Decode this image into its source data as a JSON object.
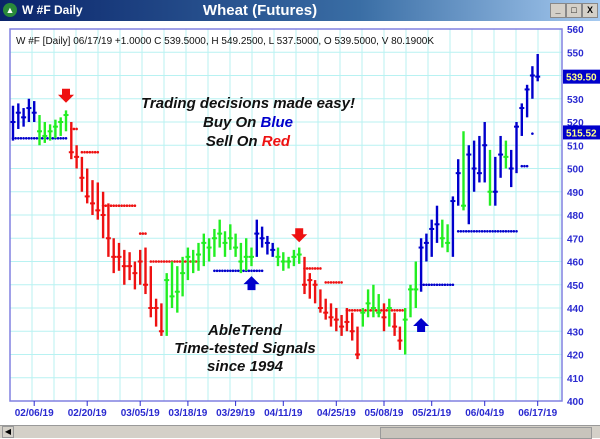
{
  "window": {
    "title": "W #F Daily",
    "chart_title": "Wheat (Futures)",
    "minimize": "_",
    "maximize": "□",
    "close": "X"
  },
  "info_line": "W #F [Daily] 06/17/19  +1.0000 C 539.5000, H 549.2500, L 537.5000, O 539.5000, V 80.1900K",
  "annotations": {
    "line1": "Trading decisions made easy!",
    "buy_prefix": "Buy On ",
    "buy_word": "Blue",
    "sell_prefix": "Sell On ",
    "sell_word": "Red",
    "brand": "AbleTrend",
    "tagline": "Time-tested Signals",
    "since": "since 1994"
  },
  "colors": {
    "blue": "#0000cc",
    "green": "#22ee22",
    "red": "#ee1111",
    "grid": "#b8f2f2",
    "axis_text": "#2a2ad0"
  },
  "chart_data": {
    "type": "ohlc",
    "title": "Wheat (Futures)",
    "ylim": [
      400,
      560
    ],
    "yticks": [
      400,
      410,
      420,
      430,
      440,
      450,
      460,
      470,
      480,
      490,
      500,
      510,
      520,
      530,
      540,
      550,
      560
    ],
    "xtick_labels": [
      "02/06/19",
      "02/20/19",
      "03/05/19",
      "03/18/19",
      "03/29/19",
      "04/11/19",
      "04/25/19",
      "05/08/19",
      "05/21/19",
      "06/04/19",
      "06/17/19"
    ],
    "xtick_bar_index": [
      4,
      14,
      24,
      33,
      42,
      51,
      61,
      70,
      79,
      89,
      99
    ],
    "price_labels": [
      {
        "value": "539.50"
      },
      {
        "value": "515.52"
      }
    ],
    "grid": true,
    "bar_fields": [
      "high",
      "low",
      "close",
      "signal"
    ],
    "bars": [
      [
        527,
        512,
        520,
        "b"
      ],
      [
        528,
        517,
        524,
        "b"
      ],
      [
        526,
        518,
        522,
        "b"
      ],
      [
        530,
        520,
        526,
        "b"
      ],
      [
        529,
        520,
        524,
        "b"
      ],
      [
        523,
        510,
        516,
        "g"
      ],
      [
        520,
        511,
        514,
        "g"
      ],
      [
        519,
        512,
        516,
        "g"
      ],
      [
        521,
        513,
        518,
        "g"
      ],
      [
        522,
        514,
        520,
        "g"
      ],
      [
        525,
        516,
        523,
        "g"
      ],
      [
        520,
        504,
        507,
        "r"
      ],
      [
        510,
        500,
        505,
        "r"
      ],
      [
        505,
        490,
        496,
        "r"
      ],
      [
        500,
        485,
        488,
        "r"
      ],
      [
        495,
        480,
        485,
        "r"
      ],
      [
        494,
        478,
        482,
        "r"
      ],
      [
        490,
        470,
        480,
        "r"
      ],
      [
        485,
        462,
        470,
        "r"
      ],
      [
        470,
        455,
        462,
        "r"
      ],
      [
        468,
        456,
        462,
        "r"
      ],
      [
        465,
        450,
        458,
        "r"
      ],
      [
        464,
        452,
        458,
        "r"
      ],
      [
        460,
        448,
        455,
        "r"
      ],
      [
        465,
        450,
        460,
        "r"
      ],
      [
        466,
        446,
        450,
        "r"
      ],
      [
        458,
        436,
        440,
        "r"
      ],
      [
        444,
        432,
        440,
        "r"
      ],
      [
        442,
        428,
        430,
        "r"
      ],
      [
        455,
        428,
        452,
        "g"
      ],
      [
        460,
        440,
        445,
        "g"
      ],
      [
        458,
        438,
        447,
        "g"
      ],
      [
        462,
        445,
        455,
        "g"
      ],
      [
        466,
        452,
        462,
        "g"
      ],
      [
        465,
        455,
        460,
        "g"
      ],
      [
        468,
        456,
        463,
        "g"
      ],
      [
        472,
        458,
        468,
        "g"
      ],
      [
        470,
        460,
        466,
        "g"
      ],
      [
        474,
        462,
        470,
        "g"
      ],
      [
        478,
        466,
        472,
        "g"
      ],
      [
        473,
        462,
        468,
        "g"
      ],
      [
        476,
        465,
        470,
        "g"
      ],
      [
        472,
        462,
        466,
        "g"
      ],
      [
        468,
        455,
        460,
        "g"
      ],
      [
        470,
        456,
        462,
        "g"
      ],
      [
        466,
        458,
        462,
        "g"
      ],
      [
        478,
        462,
        472,
        "b"
      ],
      [
        475,
        466,
        470,
        "b"
      ],
      [
        471,
        463,
        468,
        "b"
      ],
      [
        468,
        462,
        465,
        "b"
      ],
      [
        466,
        458,
        462,
        "g"
      ],
      [
        464,
        456,
        460,
        "g"
      ],
      [
        462,
        457,
        460,
        "g"
      ],
      [
        465,
        458,
        462,
        "g"
      ],
      [
        466,
        459,
        463,
        "g"
      ],
      [
        462,
        446,
        450,
        "r"
      ],
      [
        455,
        444,
        452,
        "r"
      ],
      [
        452,
        442,
        450,
        "r"
      ],
      [
        448,
        438,
        440,
        "r"
      ],
      [
        444,
        435,
        438,
        "r"
      ],
      [
        442,
        432,
        436,
        "r"
      ],
      [
        440,
        430,
        435,
        "r"
      ],
      [
        437,
        428,
        432,
        "r"
      ],
      [
        440,
        430,
        434,
        "r"
      ],
      [
        438,
        426,
        430,
        "r"
      ],
      [
        432,
        418,
        420,
        "r"
      ],
      [
        440,
        432,
        438,
        "g"
      ],
      [
        448,
        436,
        442,
        "g"
      ],
      [
        450,
        436,
        440,
        "g"
      ],
      [
        446,
        436,
        438,
        "g"
      ],
      [
        442,
        430,
        436,
        "r"
      ],
      [
        444,
        432,
        440,
        "g"
      ],
      [
        438,
        428,
        432,
        "r"
      ],
      [
        432,
        422,
        426,
        "r"
      ],
      [
        440,
        420,
        435,
        "g"
      ],
      [
        450,
        436,
        448,
        "g"
      ],
      [
        460,
        440,
        448,
        "g"
      ],
      [
        470,
        447,
        466,
        "b"
      ],
      [
        472,
        460,
        468,
        "b"
      ],
      [
        478,
        462,
        474,
        "b"
      ],
      [
        484,
        468,
        476,
        "b"
      ],
      [
        478,
        466,
        470,
        "g"
      ],
      [
        476,
        464,
        468,
        "g"
      ],
      [
        488,
        462,
        486,
        "b"
      ],
      [
        504,
        484,
        498,
        "b"
      ],
      [
        516,
        482,
        484,
        "g"
      ],
      [
        510,
        476,
        506,
        "b"
      ],
      [
        512,
        490,
        500,
        "b"
      ],
      [
        514,
        494,
        498,
        "b"
      ],
      [
        520,
        494,
        510,
        "b"
      ],
      [
        508,
        484,
        490,
        "g"
      ],
      [
        505,
        484,
        490,
        "b"
      ],
      [
        514,
        496,
        506,
        "b"
      ],
      [
        512,
        500,
        505,
        "g"
      ],
      [
        508,
        492,
        500,
        "b"
      ],
      [
        520,
        498,
        518,
        "b"
      ],
      [
        528,
        514,
        526,
        "b"
      ],
      [
        536,
        522,
        534,
        "b"
      ],
      [
        544,
        530,
        540,
        "b"
      ],
      [
        549.25,
        537.5,
        539.5,
        "b"
      ]
    ],
    "stop_dots": [
      {
        "from": 0,
        "to": 10,
        "value": 513,
        "signal": "b"
      },
      {
        "from": 11,
        "to": 12,
        "value": 517,
        "signal": "r"
      },
      {
        "from": 13,
        "to": 16,
        "value": 507,
        "signal": "r"
      },
      {
        "from": 17,
        "to": 23,
        "value": 484,
        "signal": "r"
      },
      {
        "from": 24,
        "to": 25,
        "value": 472,
        "signal": "r"
      },
      {
        "from": 26,
        "to": 35,
        "value": 460,
        "signal": "r"
      },
      {
        "from": 38,
        "to": 47,
        "value": 456,
        "signal": "b"
      },
      {
        "from": 55,
        "to": 58,
        "value": 457,
        "signal": "r"
      },
      {
        "from": 59,
        "to": 62,
        "value": 451,
        "signal": "r"
      },
      {
        "from": 63,
        "to": 74,
        "value": 439,
        "signal": "r"
      },
      {
        "from": 77,
        "to": 83,
        "value": 450,
        "signal": "b"
      },
      {
        "from": 84,
        "to": 95,
        "value": 473,
        "signal": "b"
      },
      {
        "from": 96,
        "to": 97,
        "value": 501,
        "signal": "b"
      },
      {
        "from": 98,
        "to": 98,
        "value": 515,
        "signal": "b"
      }
    ],
    "signal_arrows": [
      {
        "bar": 10,
        "direction": "down",
        "value": 530,
        "signal": "r"
      },
      {
        "bar": 45,
        "direction": "up",
        "value": 452,
        "signal": "b"
      },
      {
        "bar": 54,
        "direction": "down",
        "value": 470,
        "signal": "r"
      },
      {
        "bar": 77,
        "direction": "up",
        "value": 434,
        "signal": "b"
      }
    ]
  }
}
